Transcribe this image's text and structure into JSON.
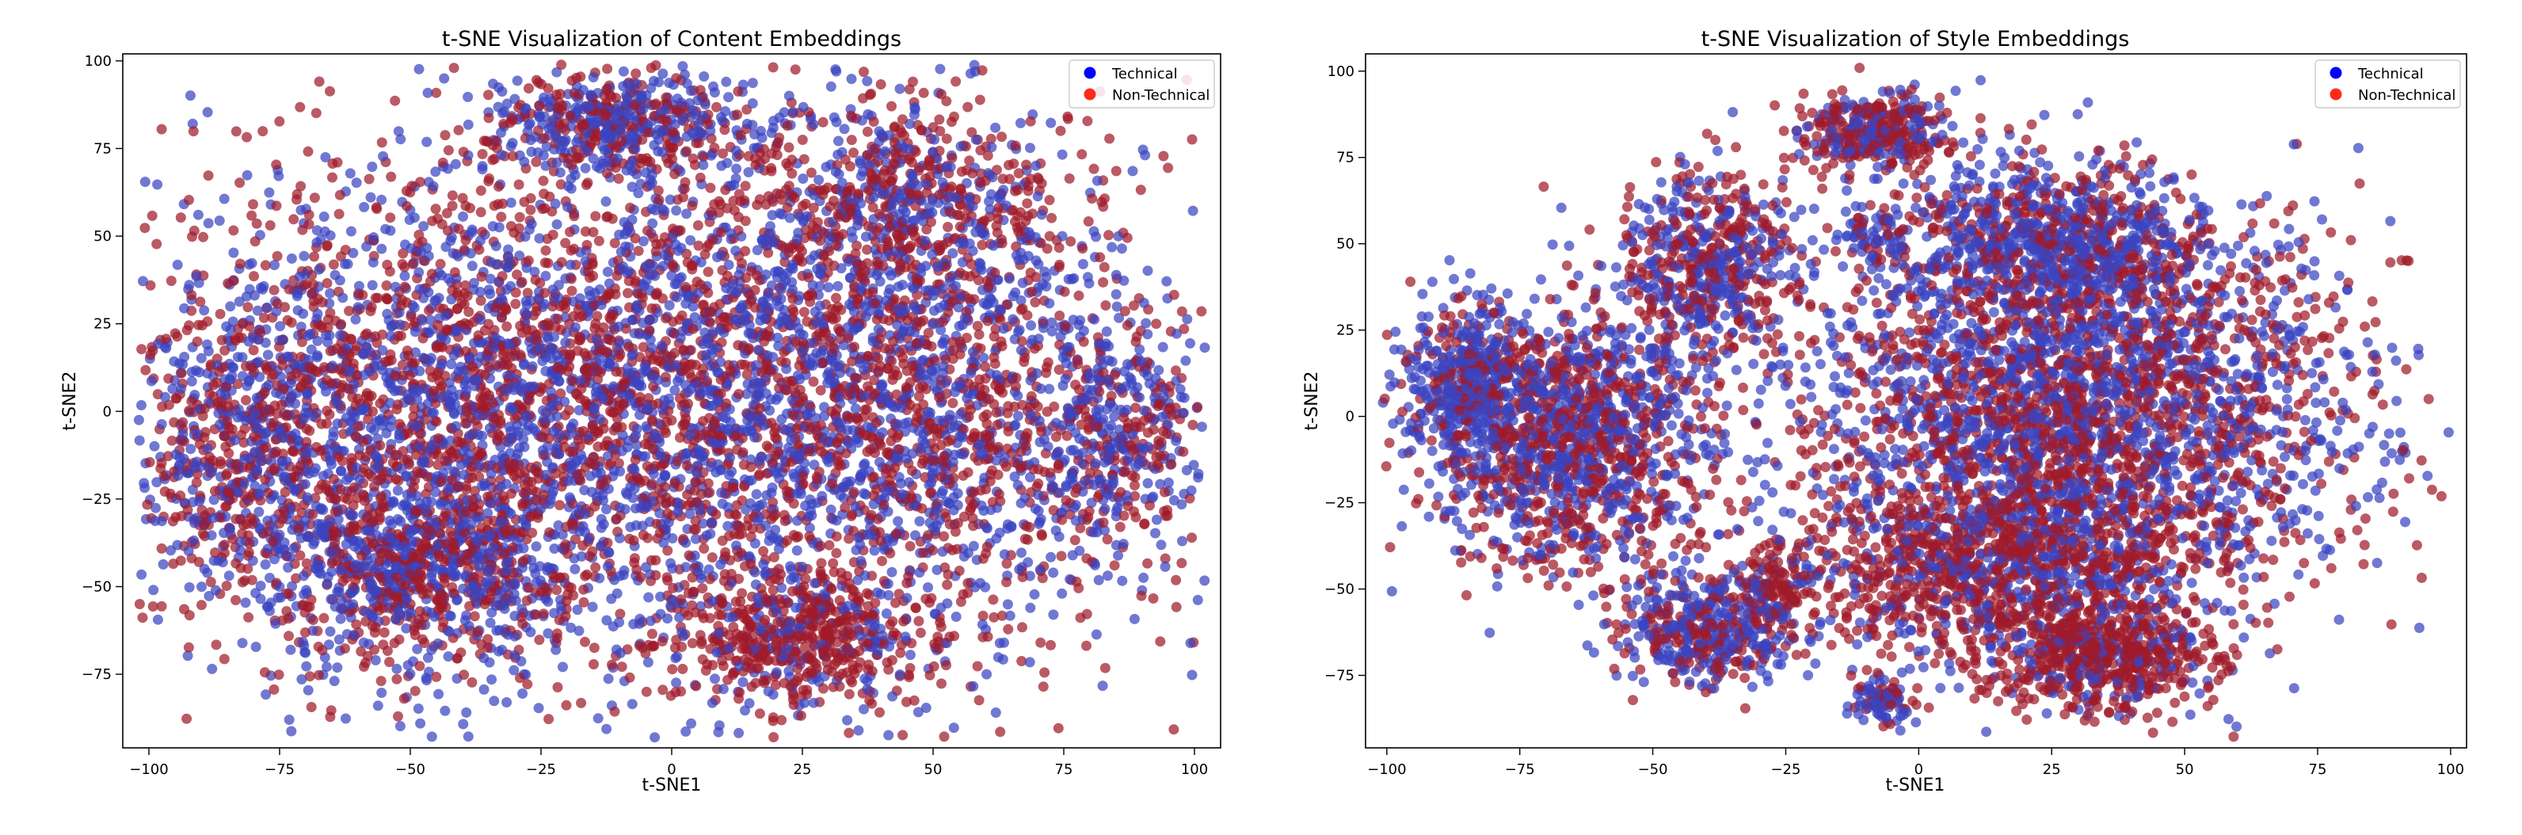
{
  "figure": {
    "background": "#ffffff"
  },
  "chart_data": [
    {
      "type": "scatter",
      "title": "t-SNE Visualization of Content Embeddings",
      "xlabel": "t-SNE1",
      "ylabel": "t-SNE2",
      "xlim": [
        -105,
        105
      ],
      "ylim": [
        -96,
        102
      ],
      "xticks": [
        -100,
        -75,
        -50,
        -25,
        0,
        25,
        50,
        75,
        100
      ],
      "yticks": [
        -75,
        -50,
        -25,
        0,
        25,
        50,
        75,
        100
      ],
      "xtick_labels": [
        "−100",
        "−75",
        "−50",
        "−25",
        "0",
        "25",
        "50",
        "75",
        "100"
      ],
      "ytick_labels": [
        "−75",
        "−50",
        "−25",
        "0",
        "25",
        "50",
        "75",
        "100"
      ],
      "grid": false,
      "legend": "top-right",
      "series": [
        {
          "name": "Technical",
          "color": "#3a44c0",
          "legend_color": "#0000ff"
        },
        {
          "name": "Non-Technical",
          "color": "#a01a2a",
          "legend_color": "#ff2a1a"
        }
      ],
      "clusters": [
        {
          "x": 0,
          "y": 0,
          "sx": 55,
          "sy": 45,
          "w": 6,
          "mix": 0.5
        },
        {
          "x": -40,
          "y": 5,
          "sx": 28,
          "sy": 30,
          "w": 3,
          "mix": 0.45
        },
        {
          "x": 40,
          "y": 5,
          "sx": 28,
          "sy": 30,
          "w": 3,
          "mix": 0.5
        },
        {
          "x": -10,
          "y": 82,
          "sx": 12,
          "sy": 7,
          "w": 1,
          "mix": 0.6
        },
        {
          "x": 45,
          "y": 60,
          "sx": 15,
          "sy": 15,
          "w": 1,
          "mix": 0.4
        },
        {
          "x": 25,
          "y": -65,
          "sx": 12,
          "sy": 10,
          "w": 1,
          "mix": 0.2
        },
        {
          "x": -50,
          "y": -45,
          "sx": 15,
          "sy": 14,
          "w": 1.5,
          "mix": 0.6
        },
        {
          "x": -80,
          "y": -10,
          "sx": 10,
          "sy": 20,
          "w": 1,
          "mix": 0.5
        },
        {
          "x": 85,
          "y": -10,
          "sx": 8,
          "sy": 15,
          "w": 0.6,
          "mix": 0.6
        }
      ]
    },
    {
      "type": "scatter",
      "title": "t-SNE Visualization of Style Embeddings",
      "xlabel": "t-SNE1",
      "ylabel": "t-SNE2",
      "xlim": [
        -104,
        103
      ],
      "ylim": [
        -96,
        105
      ],
      "xticks": [
        -100,
        -75,
        -50,
        -25,
        0,
        25,
        50,
        75,
        100
      ],
      "yticks": [
        -75,
        -50,
        -25,
        0,
        25,
        50,
        75,
        100
      ],
      "xtick_labels": [
        "−100",
        "−75",
        "−50",
        "−25",
        "0",
        "25",
        "50",
        "75",
        "100"
      ],
      "ytick_labels": [
        "−75",
        "−50",
        "−25",
        "0",
        "25",
        "50",
        "75",
        "100"
      ],
      "grid": false,
      "legend": "top-right",
      "series": [
        {
          "name": "Technical",
          "color": "#3a44c0",
          "legend_color": "#0000ff"
        },
        {
          "name": "Non-Technical",
          "color": "#a01a2a",
          "legend_color": "#ff2a1a"
        }
      ],
      "clusters": [
        {
          "x": 30,
          "y": 0,
          "sx": 26,
          "sy": 28,
          "w": 6,
          "mix": 0.5
        },
        {
          "x": 15,
          "y": -45,
          "sx": 20,
          "sy": 15,
          "w": 2,
          "mix": 0.3
        },
        {
          "x": 35,
          "y": -70,
          "sx": 10,
          "sy": 8,
          "w": 1,
          "mix": 0.2
        },
        {
          "x": 25,
          "y": 50,
          "sx": 15,
          "sy": 12,
          "w": 1.5,
          "mix": 0.65
        },
        {
          "x": -65,
          "y": -5,
          "sx": 13,
          "sy": 20,
          "w": 2.5,
          "mix": 0.5
        },
        {
          "x": -85,
          "y": 10,
          "sx": 6,
          "sy": 12,
          "w": 0.8,
          "mix": 0.7
        },
        {
          "x": -40,
          "y": 45,
          "sx": 8,
          "sy": 13,
          "w": 1,
          "mix": 0.5
        },
        {
          "x": -8,
          "y": 82,
          "sx": 7,
          "sy": 6,
          "w": 0.6,
          "mix": 0.4
        },
        {
          "x": -8,
          "y": 52,
          "sx": 3,
          "sy": 4,
          "w": 0.12,
          "mix": 0.6
        },
        {
          "x": -40,
          "y": -62,
          "sx": 8,
          "sy": 8,
          "w": 0.8,
          "mix": 0.6
        },
        {
          "x": -27,
          "y": -50,
          "sx": 3,
          "sy": 7,
          "w": 0.2,
          "mix": 0.3
        },
        {
          "x": -7,
          "y": -82,
          "sx": 3,
          "sy": 4,
          "w": 0.15,
          "mix": 0.6
        }
      ]
    }
  ]
}
